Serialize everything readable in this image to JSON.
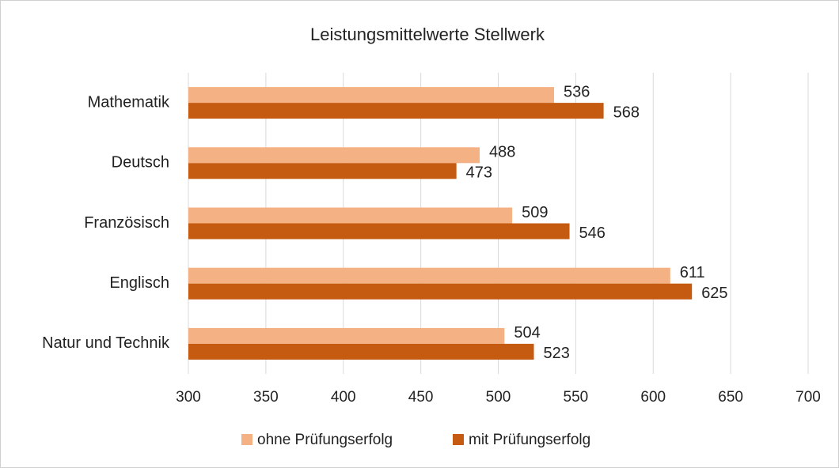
{
  "chart_data": {
    "type": "bar",
    "title": "Leistungsmittelwerte Stellwerk",
    "categories": [
      "Mathematik",
      "Deutsch",
      "Französisch",
      "Englisch",
      "Natur und Technik"
    ],
    "series": [
      {
        "name": "ohne Prüfungserfolg",
        "color": "#f4b183",
        "values": [
          536,
          488,
          509,
          611,
          504
        ]
      },
      {
        "name": "mit Prüfungserfolg",
        "color": "#c55a11",
        "values": [
          568,
          473,
          546,
          625,
          523
        ]
      }
    ],
    "xlim": [
      300,
      700
    ],
    "xticks": [
      300,
      350,
      400,
      450,
      500,
      550,
      600,
      650,
      700
    ],
    "grid": true
  }
}
